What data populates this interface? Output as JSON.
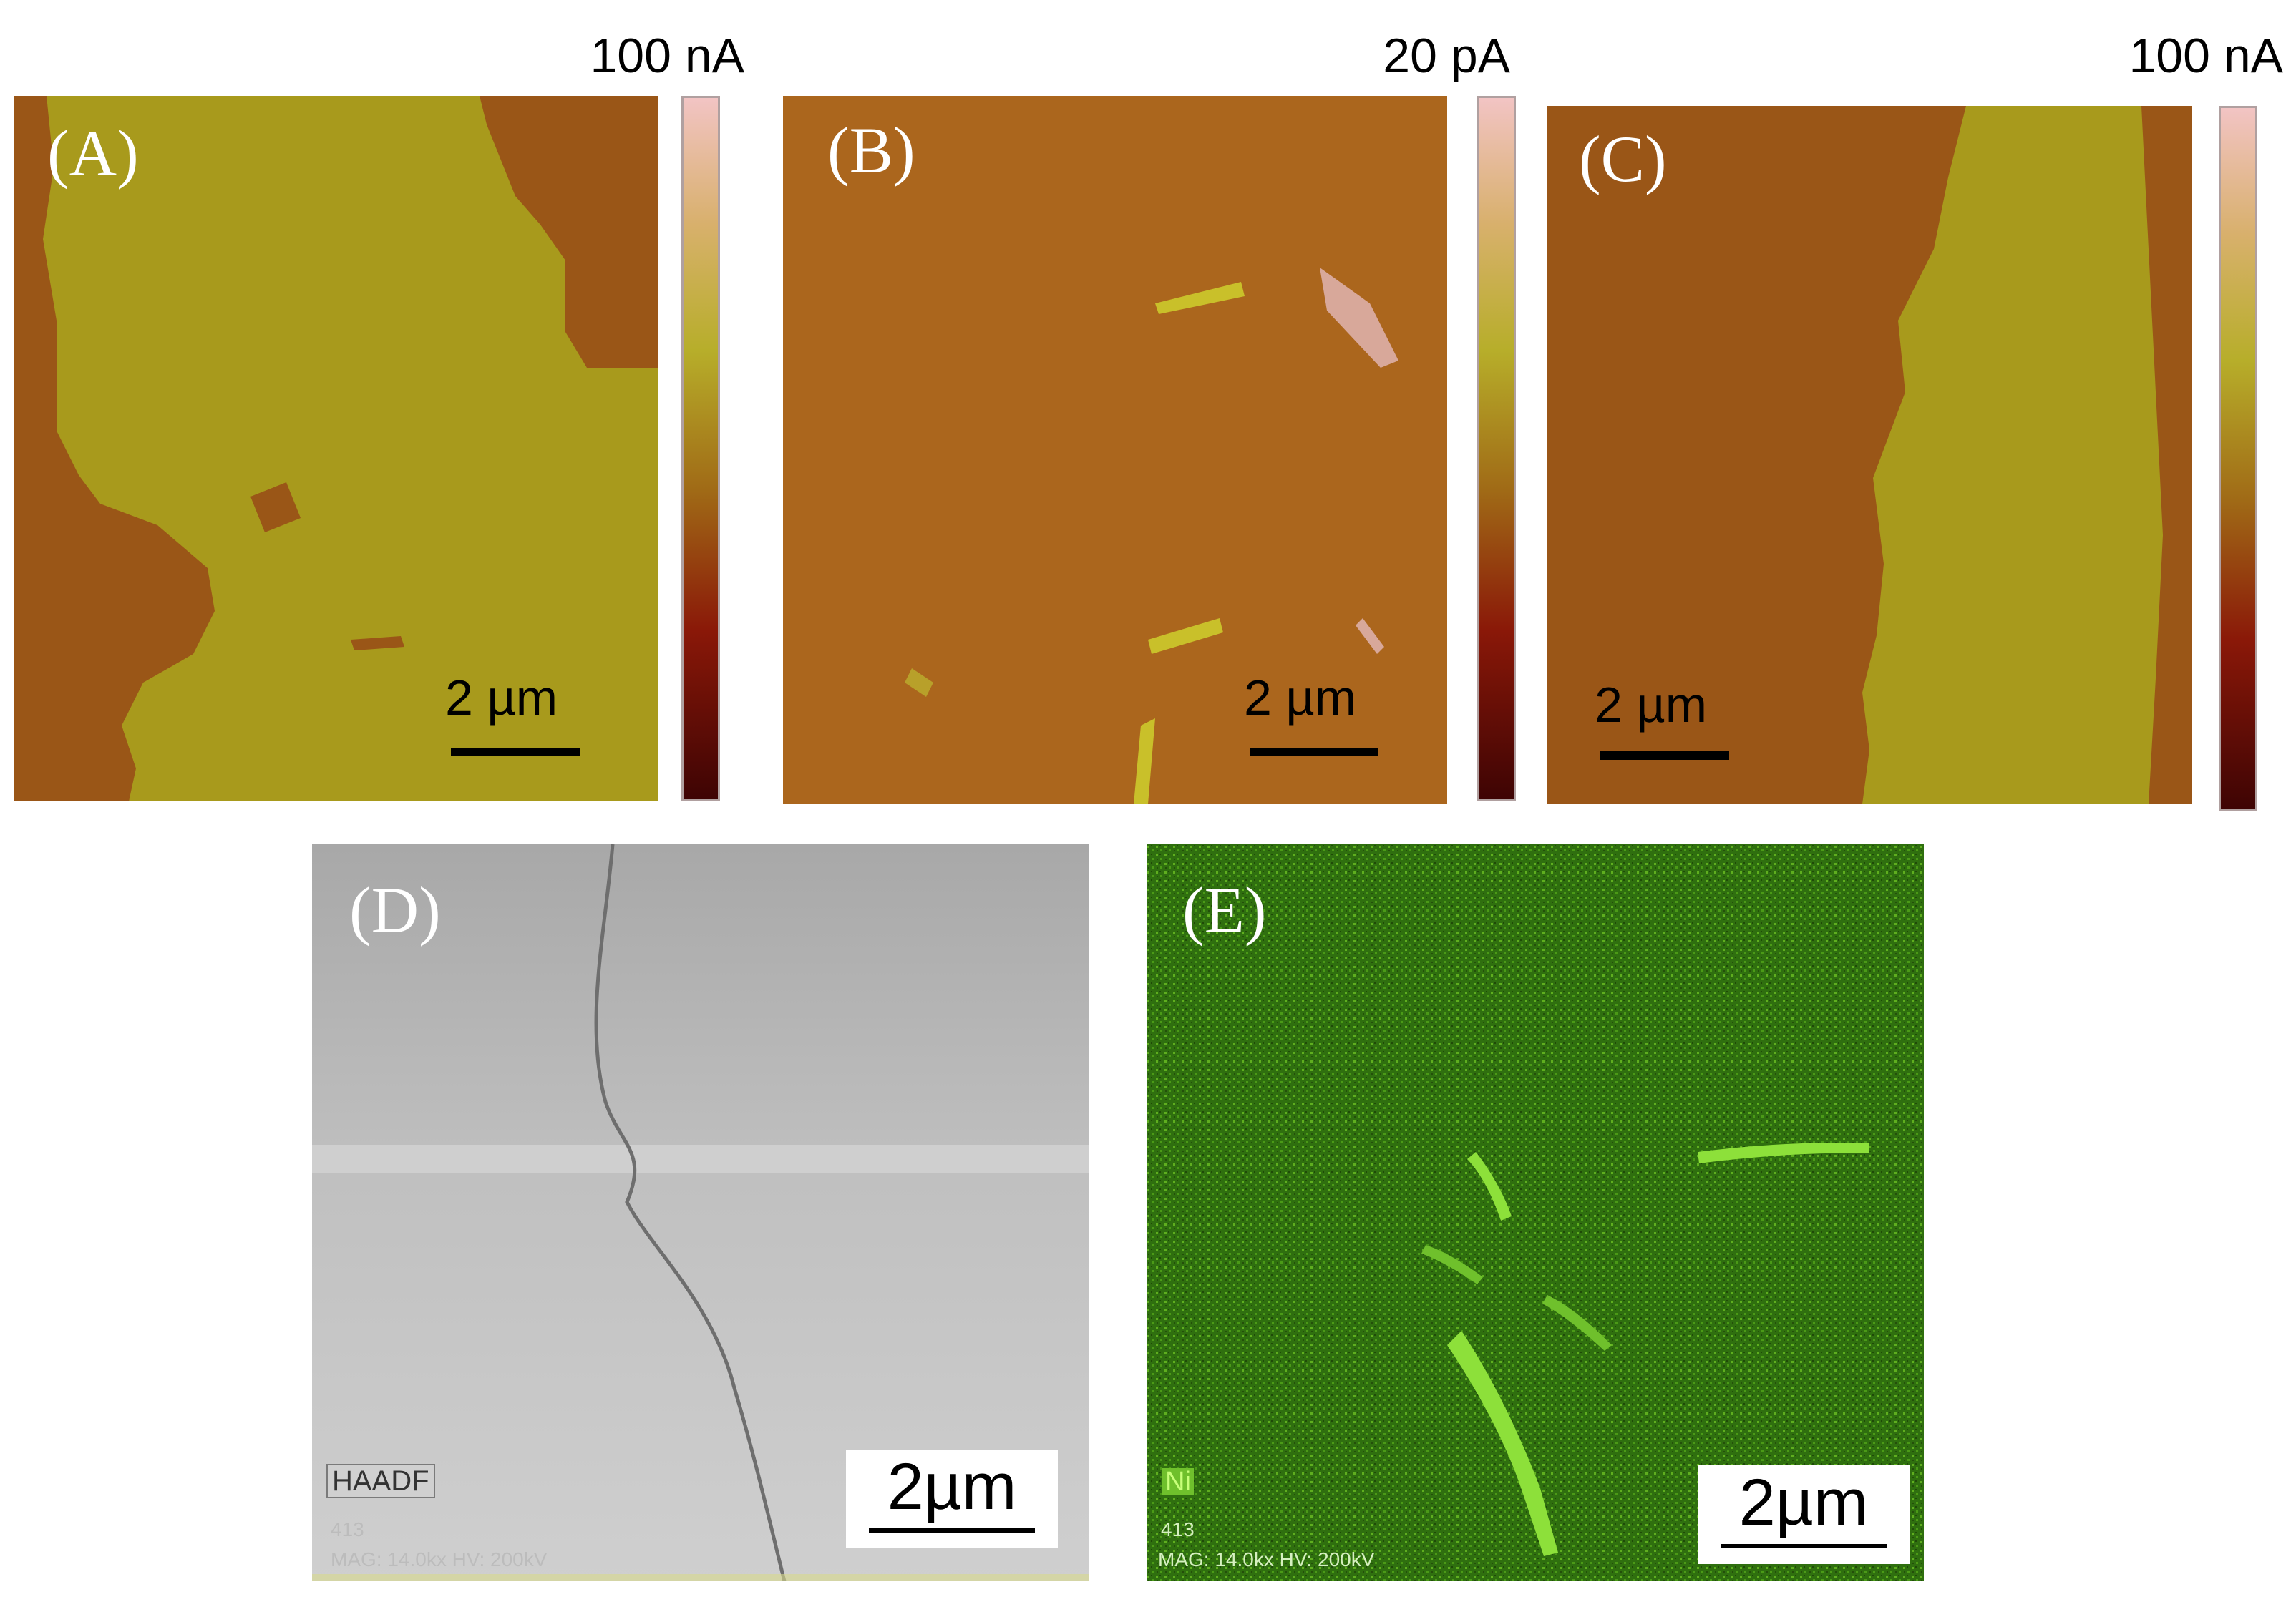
{
  "panels": {
    "a": {
      "label": "(A)",
      "scale": "2 µm",
      "unit": "100 nA"
    },
    "b": {
      "label": "(B)",
      "scale": "2 µm",
      "unit": "20 pA"
    },
    "c": {
      "label": "(C)",
      "scale": "2 µm",
      "unit": "100 nA"
    },
    "d": {
      "label": "(D)",
      "scale": "2µm",
      "detector": "HAADF",
      "id": "413",
      "info": "MAG: 14.0kx HV: 200kV"
    },
    "e": {
      "label": "(E)",
      "scale": "2µm",
      "element": "Ni",
      "id": "413",
      "info": "MAG: 14.0kx HV: 200kV"
    }
  },
  "colors": {
    "afm_dark": "#9a5617",
    "afm_light": "#a89a1c",
    "eds_green": "#3f8f14",
    "haadf_gray": "#c8c8c8"
  }
}
